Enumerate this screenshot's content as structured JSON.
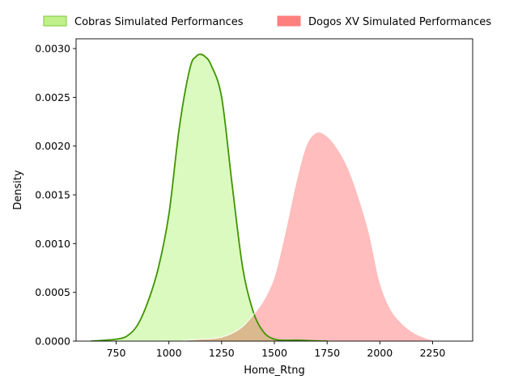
{
  "chart_data": {
    "type": "area",
    "title": "",
    "xlabel": "Home_Rtng",
    "ylabel": "Density",
    "xlim": [
      560,
      2440
    ],
    "ylim": [
      0,
      0.0031
    ],
    "xticks": [
      750,
      1000,
      1250,
      1500,
      1750,
      2000,
      2250
    ],
    "xtick_labels": [
      "750",
      "1000",
      "1250",
      "1500",
      "1750",
      "2000",
      "2250"
    ],
    "yticks": [
      0,
      0.0005,
      0.001,
      0.0015,
      0.002,
      0.0025,
      0.003
    ],
    "ytick_labels": [
      "0.0000",
      "0.0005",
      "0.0010",
      "0.0015",
      "0.0020",
      "0.0025",
      "0.0030"
    ],
    "grid": false,
    "legend_position": "top (outside, above plot)",
    "series": [
      {
        "name": "Cobras Simulated Performances",
        "fill_color": "#dbfabf",
        "line_color": "#3f9400",
        "legend_fill": "#bff08a",
        "legend_edge": "#7cc838",
        "x": [
          630,
          700,
          750,
          800,
          850,
          900,
          950,
          1000,
          1050,
          1100,
          1130,
          1150,
          1170,
          1200,
          1250,
          1300,
          1350,
          1400,
          1450,
          1500,
          1550,
          1600,
          1650,
          1700,
          1750
        ],
        "y": [
          0.0,
          1e-05,
          2e-05,
          5e-05,
          0.00016,
          0.0004,
          0.00075,
          0.0013,
          0.0022,
          0.0028,
          0.00292,
          0.00294,
          0.00292,
          0.00283,
          0.0025,
          0.0016,
          0.00075,
          0.0003,
          9e-05,
          2e-05,
          8e-06,
          1e-05,
          6e-06,
          2e-06,
          0.0
        ]
      },
      {
        "name": "Dogos XV Simulated Performances",
        "fill_color": "#ffbcbc",
        "line_color": "#ffffff",
        "legend_fill": "#ff7f7f",
        "legend_edge": "#ff7f7f",
        "x": [
          1050,
          1100,
          1150,
          1200,
          1250,
          1300,
          1350,
          1400,
          1450,
          1500,
          1550,
          1600,
          1650,
          1700,
          1750,
          1800,
          1850,
          1900,
          1950,
          2000,
          2050,
          2100,
          2150,
          2200,
          2250,
          2280
        ],
        "y": [
          0.0,
          1.2e-05,
          2e-05,
          2.5e-05,
          4e-05,
          8e-05,
          0.00015,
          0.00027,
          0.00042,
          0.00066,
          0.0011,
          0.0016,
          0.002,
          0.00214,
          0.0021,
          0.00197,
          0.00177,
          0.00147,
          0.0011,
          0.0006,
          0.00033,
          0.00019,
          0.0001,
          4.5e-05,
          1e-05,
          0.0
        ]
      }
    ]
  }
}
